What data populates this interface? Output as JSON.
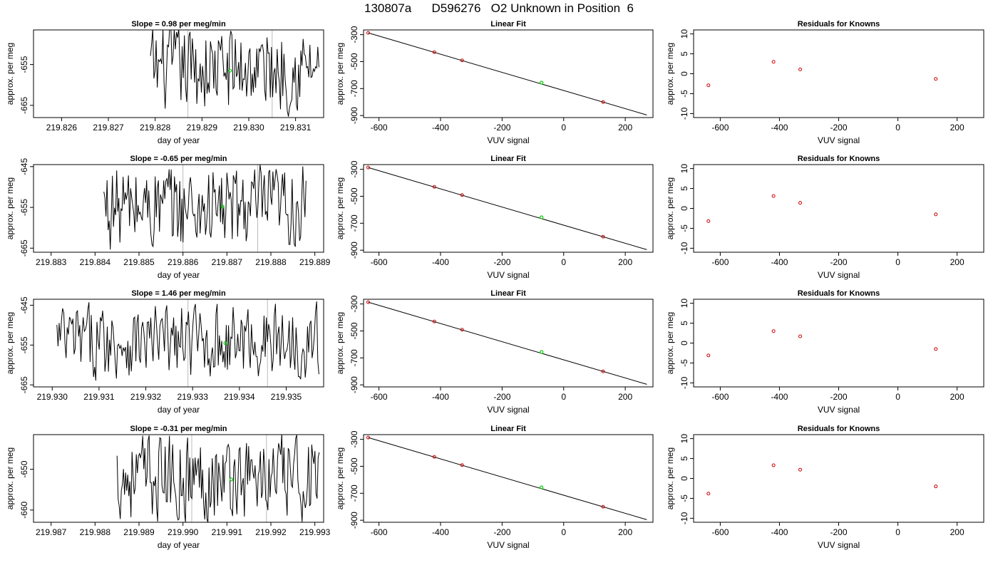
{
  "title": "130807a      D596276   O2 Unknown in Position  6",
  "colors": {
    "trace": "#000000",
    "unknown_point": "#00cc00",
    "known_point": "#cc0000",
    "grid_line": "#bbbbbb"
  },
  "chart_data": [
    {
      "type": "line",
      "panel": "timeseries",
      "row": 1,
      "title": "Slope =  0.98  per meg/min",
      "xlabel": "day of year",
      "ylabel": "approx. per meg",
      "xlim": [
        219.8254,
        219.8316
      ],
      "ylim": [
        -668,
        -646.5
      ],
      "xticks": [
        219.826,
        219.827,
        219.828,
        219.829,
        219.83,
        219.831
      ],
      "xtick_labels": [
        "219.826",
        "219.827",
        "219.828",
        "219.829",
        "219.830",
        "219.831"
      ],
      "yticks": [
        -655,
        -665
      ],
      "ytick_labels": [
        "-655",
        "-665"
      ],
      "vlines": [
        219.8287,
        219.8305
      ],
      "x_start": 219.8279,
      "x_end": 219.8315,
      "n_points": 150,
      "center": -656,
      "amp": 9,
      "unknown_point": {
        "x": 219.8296,
        "y": -656.5
      }
    },
    {
      "type": "scatter",
      "panel": "linear-fit",
      "row": 1,
      "title": "Linear Fit",
      "xlabel": "VUV signal",
      "ylabel": "approx. per meg",
      "xlim": [
        -650,
        290
      ],
      "ylim": [
        -915,
        -265
      ],
      "xticks": [
        -600,
        -400,
        -200,
        0,
        200
      ],
      "xtick_labels": [
        "-600",
        "-400",
        "-200",
        "0",
        "200"
      ],
      "yticks": [
        -300,
        -500,
        -700,
        -900
      ],
      "ytick_labels": [
        "-300",
        "-500",
        "-700",
        "-900"
      ],
      "fit_line": {
        "x": [
          -635,
          270
        ],
        "y": [
          -287,
          -896
        ]
      },
      "knowns": [
        {
          "x": -635,
          "y": -287
        },
        {
          "x": -420,
          "y": -430
        },
        {
          "x": -330,
          "y": -491
        },
        {
          "x": 128,
          "y": -800
        }
      ],
      "unknown": {
        "x": -72,
        "y": -656
      }
    },
    {
      "type": "scatter",
      "panel": "residuals",
      "row": 1,
      "title": "Residuals for Knowns",
      "xlabel": "VUV signal",
      "ylabel": "approx. per meg",
      "xlim": [
        -690,
        290
      ],
      "ylim": [
        -11,
        11
      ],
      "xticks": [
        -600,
        -400,
        -200,
        0,
        200
      ],
      "xtick_labels": [
        "-600",
        "-400",
        "-200",
        "0",
        "200"
      ],
      "yticks": [
        10,
        5,
        0,
        -5,
        -10
      ],
      "ytick_labels": [
        "10",
        "5",
        "0",
        "-5",
        "-10"
      ],
      "points": [
        {
          "x": -640,
          "y": -2.9
        },
        {
          "x": -420,
          "y": 3.0
        },
        {
          "x": -330,
          "y": 1.1
        },
        {
          "x": 128,
          "y": -1.3
        }
      ]
    },
    {
      "type": "line",
      "panel": "timeseries",
      "row": 2,
      "title": "Slope =  -0.65  per meg/min",
      "xlabel": "day of year",
      "ylabel": "approx. per meg",
      "xlim": [
        219.8826,
        219.8892
      ],
      "ylim": [
        -666,
        -644.5
      ],
      "xticks": [
        219.883,
        219.884,
        219.885,
        219.886,
        219.887,
        219.888,
        219.889
      ],
      "xtick_labels": [
        "219.883",
        "219.884",
        "219.885",
        "219.886",
        "219.887",
        "219.888",
        "219.889"
      ],
      "yticks": [
        -645,
        -655,
        -665
      ],
      "ytick_labels": [
        "-645",
        "-655",
        "-665"
      ],
      "vlines": [
        219.886,
        219.8877
      ],
      "x_start": 219.8842,
      "x_end": 219.8888,
      "n_points": 190,
      "center": -655,
      "amp": 9,
      "unknown_point": {
        "x": 219.8869,
        "y": -654.8
      }
    },
    {
      "type": "scatter",
      "panel": "linear-fit",
      "row": 2,
      "title": "Linear Fit",
      "xlabel": "VUV signal",
      "ylabel": "approx. per meg",
      "xlim": [
        -650,
        290
      ],
      "ylim": [
        -915,
        -265
      ],
      "xticks": [
        -600,
        -400,
        -200,
        0,
        200
      ],
      "xtick_labels": [
        "-600",
        "-400",
        "-200",
        "0",
        "200"
      ],
      "yticks": [
        -300,
        -500,
        -700,
        -900
      ],
      "ytick_labels": [
        "-300",
        "-500",
        "-700",
        "-900"
      ],
      "fit_line": {
        "x": [
          -635,
          270
        ],
        "y": [
          -287,
          -896
        ]
      },
      "knowns": [
        {
          "x": -635,
          "y": -287
        },
        {
          "x": -420,
          "y": -430
        },
        {
          "x": -330,
          "y": -491
        },
        {
          "x": 128,
          "y": -800
        }
      ],
      "unknown": {
        "x": -72,
        "y": -656
      }
    },
    {
      "type": "scatter",
      "panel": "residuals",
      "row": 2,
      "title": "Residuals for Knowns",
      "xlabel": "VUV signal",
      "ylabel": "approx. per meg",
      "xlim": [
        -690,
        290
      ],
      "ylim": [
        -11,
        11
      ],
      "xticks": [
        -600,
        -400,
        -200,
        0,
        200
      ],
      "xtick_labels": [
        "-600",
        "-400",
        "-200",
        "0",
        "200"
      ],
      "yticks": [
        10,
        5,
        0,
        -5,
        -10
      ],
      "ytick_labels": [
        "10",
        "5",
        "0",
        "-5",
        "-10"
      ],
      "points": [
        {
          "x": -640,
          "y": -3.2
        },
        {
          "x": -420,
          "y": 3.1
        },
        {
          "x": -330,
          "y": 1.4
        },
        {
          "x": 128,
          "y": -1.5
        }
      ]
    },
    {
      "type": "line",
      "panel": "timeseries",
      "row": 3,
      "title": "Slope =  1.46  per meg/min",
      "xlabel": "day of year",
      "ylabel": "approx. per meg",
      "xlim": [
        219.9296,
        219.9358
      ],
      "ylim": [
        -665.5,
        -643.5
      ],
      "xticks": [
        219.93,
        219.931,
        219.932,
        219.933,
        219.934,
        219.935
      ],
      "xtick_labels": [
        "219.930",
        "219.931",
        "219.932",
        "219.933",
        "219.934",
        "219.935"
      ],
      "yticks": [
        -645,
        -655,
        -665
      ],
      "ytick_labels": [
        "-645",
        "-655",
        "-665"
      ],
      "vlines": [
        219.9329,
        219.9346
      ],
      "x_start": 219.9301,
      "x_end": 219.9357,
      "n_points": 230,
      "center": -654,
      "amp": 8,
      "unknown_point": {
        "x": 219.9337,
        "y": -654.5
      }
    },
    {
      "type": "scatter",
      "panel": "linear-fit",
      "row": 3,
      "title": "Linear Fit",
      "xlabel": "VUV signal",
      "ylabel": "approx. per meg",
      "xlim": [
        -650,
        290
      ],
      "ylim": [
        -915,
        -265
      ],
      "xticks": [
        -600,
        -400,
        -200,
        0,
        200
      ],
      "xtick_labels": [
        "-600",
        "-400",
        "-200",
        "0",
        "200"
      ],
      "yticks": [
        -300,
        -500,
        -700,
        -900
      ],
      "ytick_labels": [
        "-300",
        "-500",
        "-700",
        "-900"
      ],
      "fit_line": {
        "x": [
          -635,
          270
        ],
        "y": [
          -287,
          -896
        ]
      },
      "knowns": [
        {
          "x": -635,
          "y": -287
        },
        {
          "x": -420,
          "y": -430
        },
        {
          "x": -330,
          "y": -491
        },
        {
          "x": 128,
          "y": -800
        }
      ],
      "unknown": {
        "x": -72,
        "y": -656
      }
    },
    {
      "type": "scatter",
      "panel": "residuals",
      "row": 3,
      "title": "Residuals for Knowns",
      "xlabel": "VUV signal",
      "ylabel": "approx. per meg",
      "xlim": [
        -690,
        290
      ],
      "ylim": [
        -11,
        11
      ],
      "xticks": [
        -600,
        -400,
        -200,
        0,
        200
      ],
      "xtick_labels": [
        "-600",
        "-400",
        "-200",
        "0",
        "200"
      ],
      "yticks": [
        10,
        5,
        0,
        -5,
        -10
      ],
      "ytick_labels": [
        "10",
        "5",
        "0",
        "-5",
        "-10"
      ],
      "points": [
        {
          "x": -640,
          "y": -3.1
        },
        {
          "x": -420,
          "y": 3.0
        },
        {
          "x": -330,
          "y": 1.7
        },
        {
          "x": 128,
          "y": -1.5
        }
      ]
    },
    {
      "type": "line",
      "panel": "timeseries",
      "row": 4,
      "title": "Slope =  -0.31  per meg/min",
      "xlabel": "day of year",
      "ylabel": "approx. per meg",
      "xlim": [
        219.9866,
        219.9932
      ],
      "ylim": [
        -663,
        -641.5
      ],
      "xticks": [
        219.987,
        219.988,
        219.989,
        219.99,
        219.991,
        219.992,
        219.993
      ],
      "xtick_labels": [
        "219.987",
        "219.988",
        "219.989",
        "219.990",
        "219.991",
        "219.992",
        "219.993"
      ],
      "yticks": [
        -650,
        -660
      ],
      "ytick_labels": [
        "-650",
        "-660"
      ],
      "vlines": [
        219.9902,
        219.9919
      ],
      "x_start": 219.9885,
      "x_end": 219.9931,
      "n_points": 190,
      "center": -652,
      "amp": 9,
      "unknown_point": {
        "x": 219.9911,
        "y": -652.5
      }
    },
    {
      "type": "scatter",
      "panel": "linear-fit",
      "row": 4,
      "title": "Linear Fit",
      "xlabel": "VUV signal",
      "ylabel": "approx. per meg",
      "xlim": [
        -650,
        290
      ],
      "ylim": [
        -915,
        -265
      ],
      "xticks": [
        -600,
        -400,
        -200,
        0,
        200
      ],
      "xtick_labels": [
        "-600",
        "-400",
        "-200",
        "0",
        "200"
      ],
      "yticks": [
        -300,
        -500,
        -700,
        -900
      ],
      "ytick_labels": [
        "-300",
        "-500",
        "-700",
        "-900"
      ],
      "fit_line": {
        "x": [
          -635,
          270
        ],
        "y": [
          -287,
          -896
        ]
      },
      "knowns": [
        {
          "x": -635,
          "y": -287
        },
        {
          "x": -420,
          "y": -430
        },
        {
          "x": -330,
          "y": -491
        },
        {
          "x": 128,
          "y": -800
        }
      ],
      "unknown": {
        "x": -72,
        "y": -656
      }
    },
    {
      "type": "scatter",
      "panel": "residuals",
      "row": 4,
      "title": "Residuals for Knowns",
      "xlabel": "VUV signal",
      "ylabel": "approx. per meg",
      "xlim": [
        -690,
        290
      ],
      "ylim": [
        -11,
        11
      ],
      "xticks": [
        -600,
        -400,
        -200,
        0,
        200
      ],
      "xtick_labels": [
        "-600",
        "-400",
        "-200",
        "0",
        "200"
      ],
      "yticks": [
        10,
        5,
        0,
        -5,
        -10
      ],
      "ytick_labels": [
        "10",
        "5",
        "0",
        "-5",
        "-10"
      ],
      "points": [
        {
          "x": -640,
          "y": -3.8
        },
        {
          "x": -420,
          "y": 3.3
        },
        {
          "x": -330,
          "y": 2.2
        },
        {
          "x": 128,
          "y": -2.0
        }
      ]
    }
  ]
}
